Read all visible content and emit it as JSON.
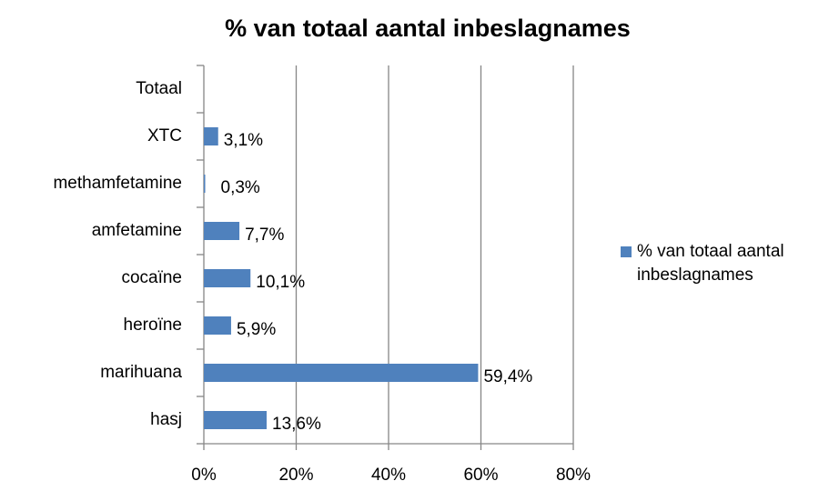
{
  "chart_data": {
    "type": "bar",
    "orientation": "horizontal",
    "title": "% van totaal aantal inbeslagnames",
    "categories": [
      "hasj",
      "marihuana",
      "heroïne",
      "cocaïne",
      "amfetamine",
      "methamfetamine",
      "XTC",
      "Totaal"
    ],
    "series": [
      {
        "name": "% van totaal aantal inbeslagnames",
        "color": "#4f81bd",
        "values": [
          13.6,
          59.4,
          5.9,
          10.1,
          7.7,
          0.3,
          3.1,
          null
        ],
        "value_labels": [
          "13,6%",
          "59,4%",
          "5,9%",
          "10,1%",
          "7,7%",
          "0,3%",
          "3,1%",
          null
        ]
      }
    ],
    "xlim": [
      0,
      80
    ],
    "xticks": [
      {
        "value": 0,
        "label": "0%"
      },
      {
        "value": 20,
        "label": "20%"
      },
      {
        "value": 40,
        "label": "40%"
      },
      {
        "value": 60,
        "label": "60%"
      },
      {
        "value": 80,
        "label": "80%"
      }
    ],
    "grid": true,
    "legend": "right"
  }
}
